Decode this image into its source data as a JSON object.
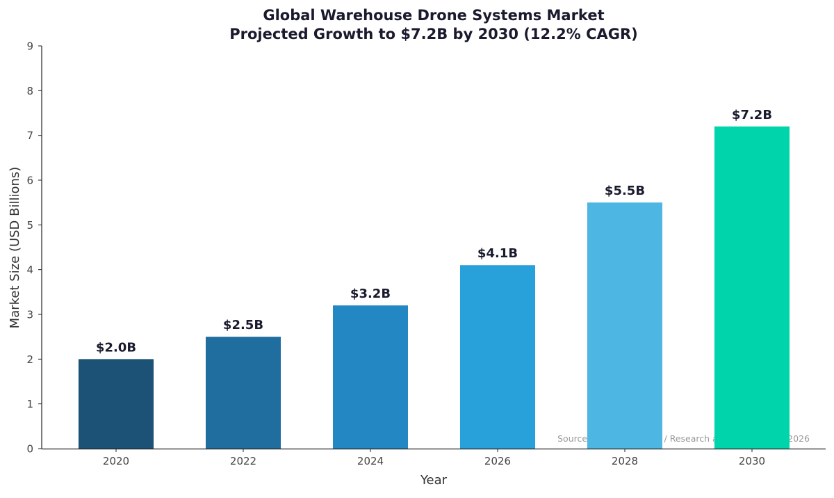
{
  "chart_data": {
    "type": "bar",
    "title": "Global Warehouse Drone Systems Market",
    "subtitle": "Projected Growth to $7.2B by 2030 (12.2% CAGR)",
    "xlabel": "Year",
    "ylabel": "Market Size (USD Billions)",
    "categories": [
      "2020",
      "2022",
      "2024",
      "2026",
      "2028",
      "2030"
    ],
    "values": [
      2.0,
      2.5,
      3.2,
      4.1,
      5.5,
      7.2
    ],
    "data_labels": [
      "$2.0B",
      "$2.5B",
      "$3.2B",
      "$4.1B",
      "$5.5B",
      "$7.2B"
    ],
    "colors": [
      "#1b5276",
      "#1f6e9f",
      "#2287c3",
      "#28a0da",
      "#4db6e2",
      "#00d4ab"
    ],
    "ylim": [
      0,
      9
    ],
    "yticks": [
      "0",
      "1",
      "2",
      "3",
      "4",
      "5",
      "6",
      "7",
      "8",
      "9"
    ],
    "grid": false,
    "annotation": "Source: GlobeNewsWire / Research and Markets, Jan 2026"
  }
}
